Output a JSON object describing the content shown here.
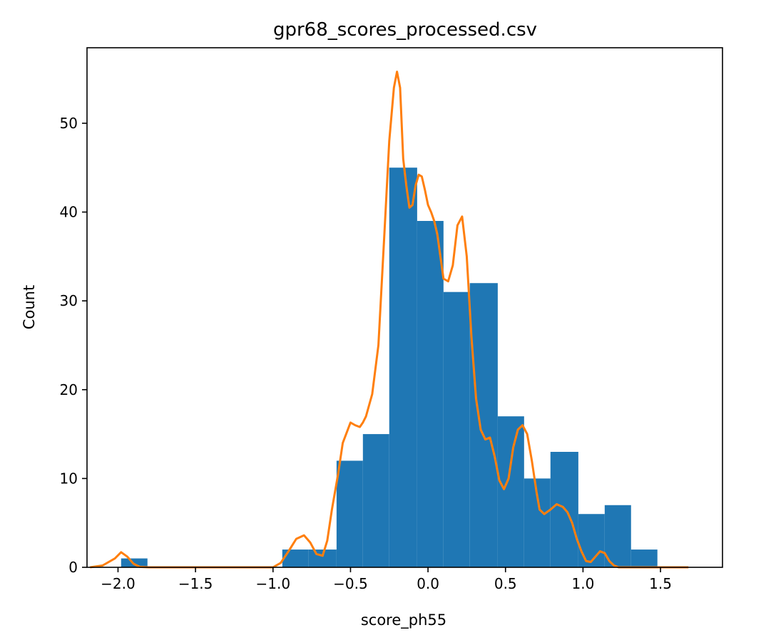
{
  "chart_data": {
    "type": "bar",
    "title": "gpr68_scores_processed.csv",
    "xlabel": "score_ph55",
    "ylabel": "Count",
    "xlim": [
      -2.2,
      1.9
    ],
    "ylim": [
      0,
      58.5
    ],
    "xticks": [
      -2.0,
      -1.5,
      -1.0,
      -0.5,
      0.0,
      0.5,
      1.0,
      1.5
    ],
    "xtick_labels": [
      "−2.0",
      "−1.5",
      "−1.0",
      "−0.5",
      "0.0",
      "0.5",
      "1.0",
      "1.5"
    ],
    "yticks": [
      0,
      10,
      20,
      30,
      40,
      50
    ],
    "ytick_labels": [
      "0",
      "10",
      "20",
      "30",
      "40",
      "50"
    ],
    "bin_edges": [
      -1.98,
      -1.81,
      -1.63,
      -1.46,
      -1.29,
      -1.11,
      -0.94,
      -0.77,
      -0.59,
      -0.42,
      -0.25,
      -0.07,
      0.1,
      0.27,
      0.45,
      0.62,
      0.79,
      0.97,
      1.14,
      1.31,
      1.48
    ],
    "values": [
      1,
      0,
      0,
      0,
      0,
      0,
      2,
      2,
      12,
      15,
      45,
      39,
      31,
      32,
      17,
      10,
      13,
      6,
      7,
      2
    ],
    "kde": {
      "x": [
        -2.18,
        -2.1,
        -2.02,
        -1.98,
        -1.94,
        -1.9,
        -1.86,
        -1.8,
        -1.7,
        -1.5,
        -1.2,
        -1.0,
        -0.95,
        -0.9,
        -0.85,
        -0.8,
        -0.76,
        -0.72,
        -0.68,
        -0.65,
        -0.62,
        -0.58,
        -0.55,
        -0.5,
        -0.47,
        -0.44,
        -0.42,
        -0.4,
        -0.36,
        -0.32,
        -0.28,
        -0.25,
        -0.22,
        -0.2,
        -0.18,
        -0.16,
        -0.14,
        -0.12,
        -0.1,
        -0.08,
        -0.06,
        -0.04,
        -0.02,
        0.0,
        0.02,
        0.04,
        0.06,
        0.08,
        0.1,
        0.13,
        0.16,
        0.19,
        0.22,
        0.25,
        0.28,
        0.31,
        0.34,
        0.37,
        0.4,
        0.43,
        0.46,
        0.49,
        0.52,
        0.55,
        0.58,
        0.61,
        0.64,
        0.67,
        0.7,
        0.72,
        0.75,
        0.79,
        0.83,
        0.87,
        0.9,
        0.93,
        0.96,
        0.99,
        1.02,
        1.05,
        1.08,
        1.11,
        1.14,
        1.17,
        1.2,
        1.23,
        1.26,
        1.29,
        1.32,
        1.35,
        1.38,
        1.41,
        1.44,
        1.47,
        1.5,
        1.54,
        1.6,
        1.68
      ],
      "y": [
        0,
        0.2,
        1.0,
        1.7,
        1.2,
        0.4,
        0.05,
        0,
        0,
        0,
        0,
        0,
        0.5,
        1.8,
        3.2,
        3.6,
        2.8,
        1.5,
        1.3,
        3.0,
        6.5,
        10.5,
        14.0,
        16.3,
        16.0,
        15.8,
        16.3,
        17.0,
        19.5,
        25.0,
        38.0,
        48.0,
        54.0,
        55.8,
        54.0,
        46.0,
        43.0,
        40.5,
        40.8,
        43.0,
        44.2,
        44.0,
        42.5,
        40.8,
        40.0,
        39.0,
        37.5,
        35.0,
        32.5,
        32.2,
        34.0,
        38.5,
        39.5,
        35.0,
        26.0,
        19.0,
        15.5,
        14.4,
        14.6,
        12.5,
        9.8,
        8.8,
        10.0,
        13.5,
        15.5,
        16.0,
        15.0,
        12.0,
        8.5,
        6.5,
        6.0,
        6.5,
        7.1,
        6.8,
        6.2,
        5.0,
        3.2,
        1.8,
        0.7,
        0.6,
        1.2,
        1.8,
        1.6,
        0.7,
        0.2,
        0,
        0,
        0,
        0,
        0,
        0,
        0,
        0,
        0,
        0,
        0,
        0,
        0
      ]
    },
    "grid": false,
    "colors": {
      "bars": "#1f77b4",
      "kde": "#ff7f0e"
    }
  }
}
